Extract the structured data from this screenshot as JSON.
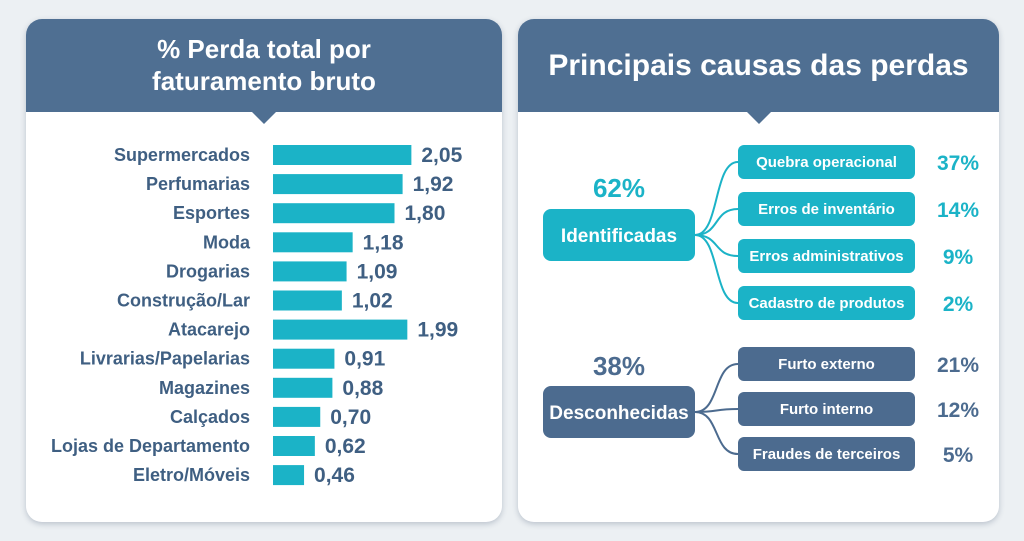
{
  "left_panel": {
    "title_line1": "% Perda total por",
    "title_line2": "faturamento bruto"
  },
  "right_panel": {
    "title": "Principais causas das perdas"
  },
  "colors": {
    "header": "#4f6f92",
    "teal": "#1bb3c7",
    "navy": "#4c6b8f",
    "label_text": "#3f5f82"
  },
  "chart_data": [
    {
      "type": "bar",
      "orientation": "horizontal",
      "title": "% Perda total por faturamento bruto",
      "categories": [
        "Supermercados",
        "Perfumarias",
        "Esportes",
        "Moda",
        "Drogarias",
        "Construção/Lar",
        "Atacarejo",
        "Livrarias/Papelarias",
        "Magazines",
        "Calçados",
        "Lojas de Departamento",
        "Eletro/Móveis"
      ],
      "values": [
        2.05,
        1.92,
        1.8,
        1.18,
        1.09,
        1.02,
        1.99,
        0.91,
        0.88,
        0.7,
        0.62,
        0.46
      ],
      "value_labels": [
        "2,05",
        "1,92",
        "1,80",
        "1,18",
        "1,09",
        "1,02",
        "1,99",
        "0,91",
        "0,88",
        "0,70",
        "0,62",
        "0,46"
      ],
      "bar_color": "#1bb3c7"
    },
    {
      "type": "tree",
      "title": "Principais causas das perdas",
      "groups": [
        {
          "name": "Identificadas",
          "percent": "62%",
          "color": "#1bb3c7",
          "items": [
            {
              "label": "Quebra operacional",
              "percent": "37%"
            },
            {
              "label": "Erros de inventário",
              "percent": "14%"
            },
            {
              "label": "Erros administrativos",
              "percent": "9%"
            },
            {
              "label": "Cadastro de produtos",
              "percent": "2%"
            }
          ]
        },
        {
          "name": "Desconhecidas",
          "percent": "38%",
          "color": "#4c6b8f",
          "items": [
            {
              "label": "Furto externo",
              "percent": "21%"
            },
            {
              "label": "Furto interno",
              "percent": "12%"
            },
            {
              "label": "Fraudes de terceiros",
              "percent": "5%"
            }
          ]
        }
      ]
    }
  ]
}
